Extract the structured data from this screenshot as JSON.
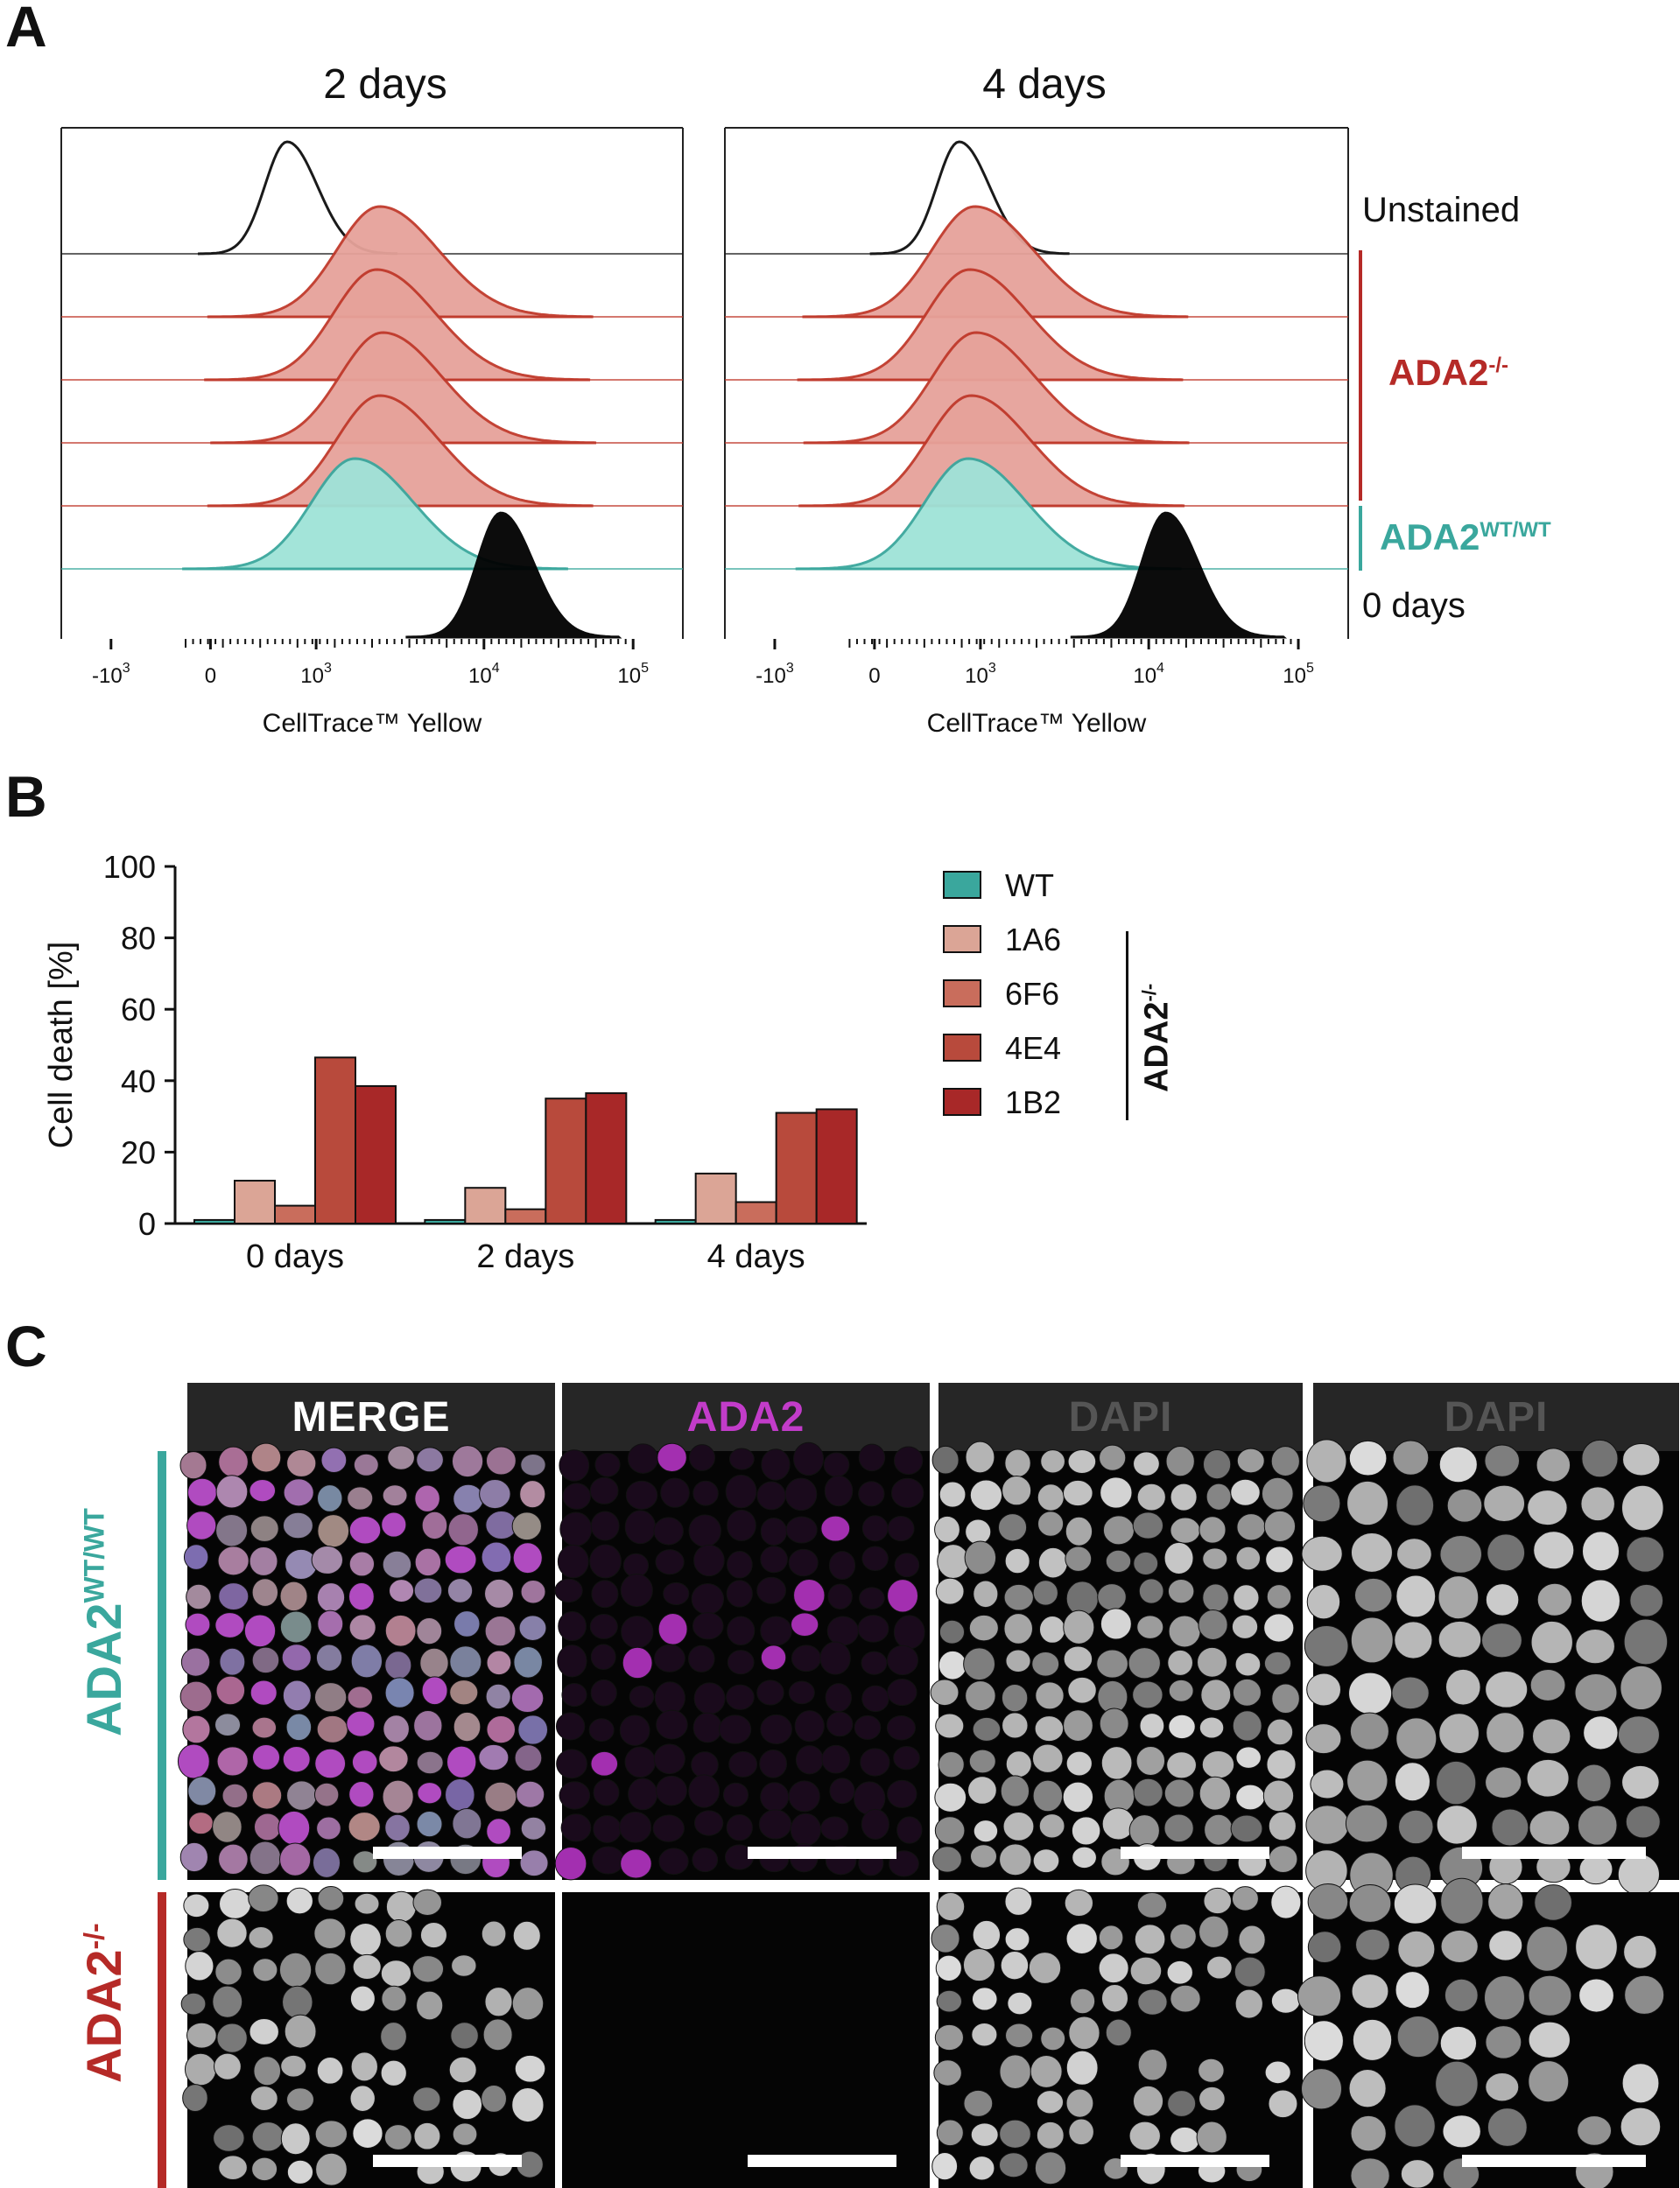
{
  "panels": {
    "a": "A",
    "b": "B",
    "c": "C"
  },
  "chart_data": [
    {
      "type": "area",
      "panel": "A",
      "title": "2 days",
      "xlabel": "CellTrace™ Yellow",
      "x_scale": "biexponential",
      "x_ticks": [
        "-10",
        "0",
        "10",
        "10",
        "10"
      ],
      "x_tick_exponents": [
        "3",
        "",
        "3",
        "4",
        "5"
      ],
      "tracks": [
        {
          "name": "Unstained",
          "color": "#1a1a1a",
          "filled": false,
          "peak": 150
        },
        {
          "name": "ADA2-/- 1",
          "color": "#c0392b",
          "filled": true,
          "peak": 2400
        },
        {
          "name": "ADA2-/- 2",
          "color": "#c0392b",
          "filled": true,
          "peak": 2300
        },
        {
          "name": "ADA2-/- 3",
          "color": "#c0392b",
          "filled": true,
          "peak": 2500
        },
        {
          "name": "ADA2-/- 4",
          "color": "#c0392b",
          "filled": true,
          "peak": 2400
        },
        {
          "name": "ADA2WT/WT",
          "color": "#3aa79d",
          "filled": true,
          "peak": 1700
        },
        {
          "name": "0 days",
          "color": "#000000",
          "filled": true,
          "peak": 13000
        }
      ]
    },
    {
      "type": "area",
      "panel": "A",
      "title": "4 days",
      "xlabel": "CellTrace™ Yellow",
      "x_scale": "biexponential",
      "x_ticks": [
        "-10",
        "0",
        "10",
        "10",
        "10"
      ],
      "x_tick_exponents": [
        "3",
        "",
        "3",
        "4",
        "5"
      ],
      "tracks": [
        {
          "name": "Unstained",
          "color": "#1a1a1a",
          "filled": false,
          "peak": 250
        },
        {
          "name": "ADA2-/- 1",
          "color": "#c0392b",
          "filled": true,
          "peak": 700
        },
        {
          "name": "ADA2-/- 2",
          "color": "#c0392b",
          "filled": true,
          "peak": 500
        },
        {
          "name": "ADA2-/- 3",
          "color": "#c0392b",
          "filled": true,
          "peak": 750
        },
        {
          "name": "ADA2-/- 4",
          "color": "#c0392b",
          "filled": true,
          "peak": 550
        },
        {
          "name": "ADA2WT/WT",
          "color": "#3aa79d",
          "filled": true,
          "peak": 450
        },
        {
          "name": "0 days",
          "color": "#000000",
          "filled": true,
          "peak": 13000
        }
      ]
    },
    {
      "type": "bar",
      "panel": "B",
      "categories": [
        "0 days",
        "2 days",
        "4 days"
      ],
      "ylabel": "Cell death [%]",
      "ylim": [
        0,
        100
      ],
      "yticks": [
        "0",
        "20",
        "40",
        "60",
        "80",
        "100"
      ],
      "series": [
        {
          "name": "WT",
          "color": "#3aa79d",
          "values": [
            1,
            1,
            1
          ]
        },
        {
          "name": "1A6",
          "color": "#dba596",
          "values": [
            12,
            10,
            14
          ]
        },
        {
          "name": "6F6",
          "color": "#c96d5c",
          "values": [
            5,
            4,
            6
          ]
        },
        {
          "name": "4E4",
          "color": "#b84a3c",
          "values": [
            46.5,
            35,
            31
          ]
        },
        {
          "name": "1B2",
          "color": "#a82828",
          "values": [
            38.5,
            36.5,
            32
          ]
        }
      ]
    }
  ],
  "legend_a": {
    "unstained": "Unstained",
    "ko": "ADA2",
    "ko_sup": "-/-",
    "wt": "ADA2",
    "wt_sup": "WT/WT",
    "zero": "0 days"
  },
  "legend_b": {
    "group": "ADA2",
    "group_sup": "-/-"
  },
  "micro": {
    "headers": [
      "MERGE",
      "ADA2",
      "DAPI",
      "DAPI"
    ],
    "header_colors": [
      "#ffffff",
      "#c23cc9",
      "#555555",
      "#555555"
    ],
    "rows": [
      {
        "label": "ADA2",
        "sup": "WT/WT",
        "color": "#3aa79d"
      },
      {
        "label": "ADA2",
        "sup": "-/-",
        "color": "#b52a27"
      }
    ]
  }
}
